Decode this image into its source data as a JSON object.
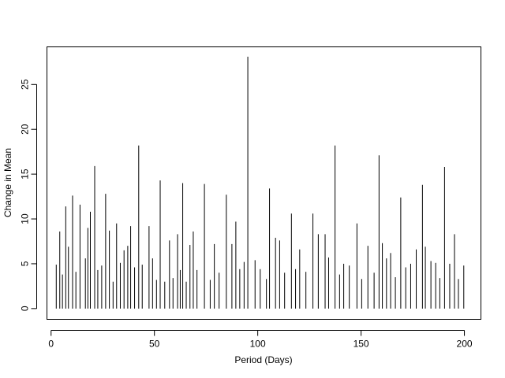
{
  "chart_data": {
    "type": "bar",
    "title": "",
    "xlabel": "Period (Days)",
    "ylabel": "Change in Mean",
    "xlim": [
      -2,
      208
    ],
    "ylim": [
      -1.2,
      29.2
    ],
    "x_ticks": [
      0,
      50,
      100,
      150,
      200
    ],
    "y_ticks": [
      0,
      5,
      10,
      15,
      20,
      25
    ],
    "grid": false,
    "legend": "none",
    "bar_color": "#000000",
    "spikes": [
      {
        "x": 2.5,
        "y": 4.9
      },
      {
        "x": 4.2,
        "y": 8.6
      },
      {
        "x": 5.5,
        "y": 3.8
      },
      {
        "x": 7.1,
        "y": 11.4
      },
      {
        "x": 8.4,
        "y": 6.9
      },
      {
        "x": 10.4,
        "y": 12.6
      },
      {
        "x": 12.0,
        "y": 4.1
      },
      {
        "x": 14.0,
        "y": 11.6
      },
      {
        "x": 16.6,
        "y": 5.6
      },
      {
        "x": 17.8,
        "y": 9.0
      },
      {
        "x": 19.0,
        "y": 10.8
      },
      {
        "x": 21.1,
        "y": 15.9
      },
      {
        "x": 22.6,
        "y": 4.3
      },
      {
        "x": 24.5,
        "y": 4.8
      },
      {
        "x": 26.4,
        "y": 12.8
      },
      {
        "x": 28.2,
        "y": 8.7
      },
      {
        "x": 30.0,
        "y": 3.0
      },
      {
        "x": 31.7,
        "y": 9.5
      },
      {
        "x": 33.5,
        "y": 5.1
      },
      {
        "x": 35.3,
        "y": 6.5
      },
      {
        "x": 37.1,
        "y": 7.0
      },
      {
        "x": 38.5,
        "y": 9.2
      },
      {
        "x": 40.4,
        "y": 4.6
      },
      {
        "x": 42.4,
        "y": 18.2
      },
      {
        "x": 44.1,
        "y": 4.9
      },
      {
        "x": 47.4,
        "y": 9.2
      },
      {
        "x": 49.1,
        "y": 5.6
      },
      {
        "x": 51.0,
        "y": 3.2
      },
      {
        "x": 52.8,
        "y": 14.3
      },
      {
        "x": 55.0,
        "y": 3.0
      },
      {
        "x": 57.3,
        "y": 7.6
      },
      {
        "x": 59.0,
        "y": 3.4
      },
      {
        "x": 61.2,
        "y": 8.3
      },
      {
        "x": 62.5,
        "y": 4.3
      },
      {
        "x": 63.7,
        "y": 14.0
      },
      {
        "x": 65.4,
        "y": 3.0
      },
      {
        "x": 67.2,
        "y": 7.1
      },
      {
        "x": 68.8,
        "y": 8.6
      },
      {
        "x": 70.6,
        "y": 4.3
      },
      {
        "x": 74.2,
        "y": 13.9
      },
      {
        "x": 77.0,
        "y": 3.2
      },
      {
        "x": 79.0,
        "y": 7.2
      },
      {
        "x": 81.3,
        "y": 4.0
      },
      {
        "x": 84.8,
        "y": 12.7
      },
      {
        "x": 87.5,
        "y": 7.2
      },
      {
        "x": 89.4,
        "y": 9.7
      },
      {
        "x": 91.3,
        "y": 4.4
      },
      {
        "x": 93.4,
        "y": 5.2
      },
      {
        "x": 95.2,
        "y": 28.1
      },
      {
        "x": 98.7,
        "y": 5.4
      },
      {
        "x": 101.2,
        "y": 4.4
      },
      {
        "x": 104.2,
        "y": 3.3
      },
      {
        "x": 105.7,
        "y": 13.4
      },
      {
        "x": 108.6,
        "y": 7.9
      },
      {
        "x": 110.6,
        "y": 7.6
      },
      {
        "x": 113.0,
        "y": 4.0
      },
      {
        "x": 116.3,
        "y": 10.6
      },
      {
        "x": 118.3,
        "y": 4.4
      },
      {
        "x": 120.3,
        "y": 6.6
      },
      {
        "x": 123.3,
        "y": 4.1
      },
      {
        "x": 126.7,
        "y": 10.6
      },
      {
        "x": 129.3,
        "y": 8.3
      },
      {
        "x": 132.6,
        "y": 8.3
      },
      {
        "x": 134.3,
        "y": 5.7
      },
      {
        "x": 137.4,
        "y": 18.2
      },
      {
        "x": 139.6,
        "y": 3.8
      },
      {
        "x": 141.6,
        "y": 5.0
      },
      {
        "x": 144.3,
        "y": 4.8
      },
      {
        "x": 148.0,
        "y": 9.5
      },
      {
        "x": 150.3,
        "y": 3.3
      },
      {
        "x": 153.3,
        "y": 7.0
      },
      {
        "x": 156.3,
        "y": 4.0
      },
      {
        "x": 158.7,
        "y": 17.1
      },
      {
        "x": 160.3,
        "y": 7.3
      },
      {
        "x": 162.3,
        "y": 5.6
      },
      {
        "x": 164.3,
        "y": 6.2
      },
      {
        "x": 166.6,
        "y": 3.5
      },
      {
        "x": 169.2,
        "y": 12.4
      },
      {
        "x": 171.6,
        "y": 4.6
      },
      {
        "x": 174.0,
        "y": 5.0
      },
      {
        "x": 176.7,
        "y": 6.6
      },
      {
        "x": 179.7,
        "y": 13.8
      },
      {
        "x": 181.1,
        "y": 6.9
      },
      {
        "x": 183.8,
        "y": 5.3
      },
      {
        "x": 186.1,
        "y": 5.1
      },
      {
        "x": 188.1,
        "y": 3.4
      },
      {
        "x": 190.4,
        "y": 15.8
      },
      {
        "x": 192.9,
        "y": 5.0
      },
      {
        "x": 195.2,
        "y": 8.3
      },
      {
        "x": 197.1,
        "y": 3.3
      },
      {
        "x": 199.7,
        "y": 4.8
      }
    ]
  }
}
